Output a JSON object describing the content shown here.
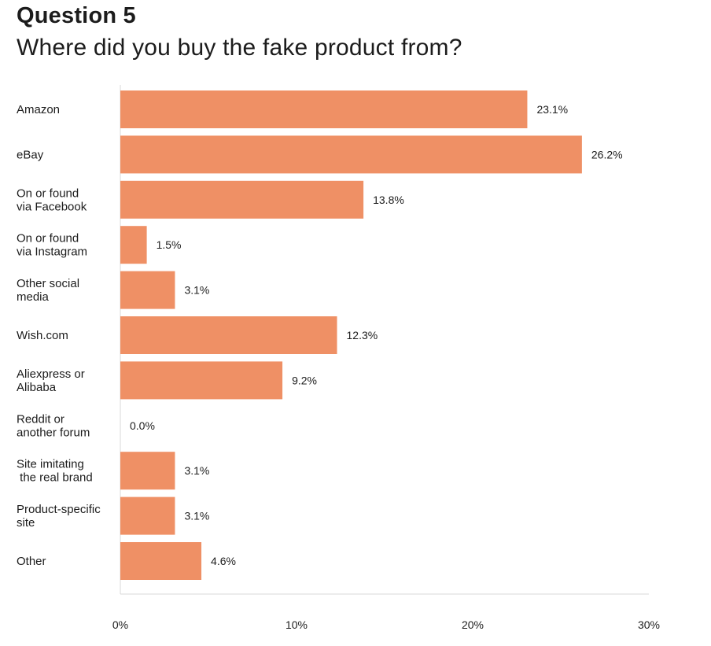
{
  "header": {
    "title": "Question 5",
    "subtitle": "Where did you buy the fake product from?"
  },
  "colors": {
    "bar": "#ef9065",
    "axis": "#d9d9d9",
    "text": "#1c1c1c"
  },
  "chart_data": {
    "type": "bar",
    "orientation": "horizontal",
    "title": "Question 5",
    "subtitle": "Where did you buy the fake product from?",
    "xlabel": "",
    "ylabel": "",
    "xlim": [
      0,
      30
    ],
    "xticks": [
      0,
      10,
      20,
      30
    ],
    "xtick_labels": [
      "0%",
      "10%",
      "20%",
      "30%"
    ],
    "grid": false,
    "categories": [
      [
        "Amazon"
      ],
      [
        "eBay"
      ],
      [
        "On or found",
        "via Facebook"
      ],
      [
        "On or found",
        "via Instagram"
      ],
      [
        "Other social",
        "media"
      ],
      [
        "Wish.com"
      ],
      [
        "Aliexpress or",
        "Alibaba"
      ],
      [
        "Reddit or",
        "another forum"
      ],
      [
        "Site imitating",
        " the real brand"
      ],
      [
        "Product-specific",
        "site"
      ],
      [
        "Other"
      ]
    ],
    "values": [
      23.1,
      26.2,
      13.8,
      1.5,
      3.1,
      12.3,
      9.2,
      0.0,
      3.1,
      3.1,
      4.6
    ],
    "value_labels": [
      "23.1%",
      "26.2%",
      "13.8%",
      "1.5%",
      "3.1%",
      "12.3%",
      "9.2%",
      "0.0%",
      "3.1%",
      "3.1%",
      "4.6%"
    ]
  }
}
